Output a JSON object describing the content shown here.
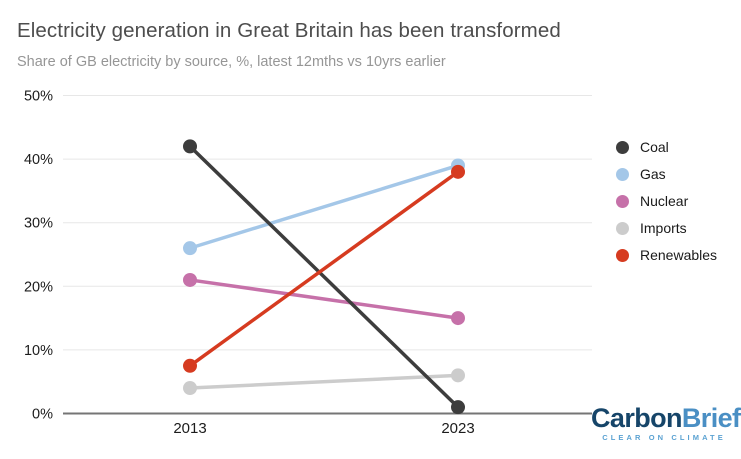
{
  "header": {
    "title": "Electricity generation in Great Britain has been transformed",
    "subtitle": "Share of GB electricity by source, %, latest 12mths vs 10yrs earlier"
  },
  "chart_data": {
    "type": "line",
    "subtype": "slope-chart",
    "categories": [
      "2013",
      "2023"
    ],
    "series": [
      {
        "name": "Coal",
        "values": [
          42,
          1
        ],
        "color": "#3d3d3d"
      },
      {
        "name": "Gas",
        "values": [
          26,
          39
        ],
        "color": "#a4c7e8"
      },
      {
        "name": "Nuclear",
        "values": [
          21,
          15
        ],
        "color": "#c671a9"
      },
      {
        "name": "Imports",
        "values": [
          4,
          6
        ],
        "color": "#cccccc"
      },
      {
        "name": "Renewables",
        "values": [
          7.5,
          38
        ],
        "color": "#d63b20"
      }
    ],
    "title": "Electricity generation in Great Britain has been transformed",
    "subtitle": "Share of GB electricity by source, %, latest 12mths vs 10yrs earlier",
    "xlabel": "",
    "ylabel": "",
    "ylim": [
      0,
      50
    ],
    "ytick_labels": [
      "0%",
      "10%",
      "20%",
      "30%",
      "40%",
      "50%"
    ],
    "ytick_values": [
      0,
      10,
      20,
      30,
      40,
      50
    ],
    "grid": true,
    "legend_position": "right"
  },
  "style": {
    "gridline_color": "#e7e7e7",
    "axisline_color": "#757575",
    "tick_text_color": "#1c1c1c"
  },
  "branding": {
    "logo_primary": "Carbon",
    "logo_secondary": "Brief",
    "tagline": "CLEAR ON CLIMATE"
  }
}
